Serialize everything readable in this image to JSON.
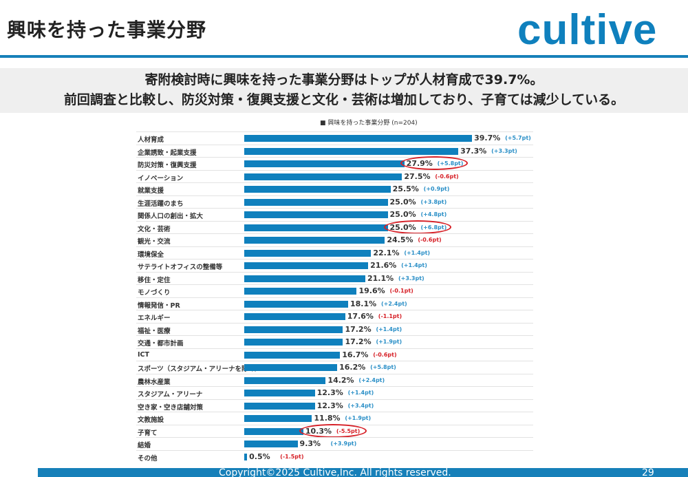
{
  "header": {
    "title": "興味を持った事業分野",
    "logo_text": "cultive",
    "accent_color": "#0f80bd"
  },
  "banner": {
    "line1": "寄附検討時に興味を持った事業分野はトップが人材育成で39.7%。",
    "line2": "前回調査と比較し、防災対策・復興支援と文化・芸術は増加しており、子育ては減少している。"
  },
  "chart_data": {
    "type": "bar",
    "orientation": "horizontal",
    "legend": "■ 興味を持った事業分野 (n=204)",
    "legend_placement": "top",
    "unit": "%",
    "categories": [
      "人材育成",
      "企業誘致・起業支援",
      "防災対策・復興支援",
      "イノベーション",
      "就業支援",
      "生涯活躍のまち",
      "関係人口の創出・拡大",
      "文化・芸術",
      "観光・交流",
      "環境保全",
      "サテライトオフィスの整備等",
      "移住・定住",
      "モノづくり",
      "情報発信・PR",
      "エネルギー",
      "福祉・医療",
      "交通・都市計画",
      "ICT",
      "スポーツ（スタジアム・アリーナを除く）",
      "農林水産業",
      "スタジアム・アリーナ",
      "空き家・空き店舗対策",
      "文教施設",
      "子育て",
      "結婚",
      "その他"
    ],
    "values": [
      39.7,
      37.3,
      27.9,
      27.5,
      25.5,
      25.0,
      25.0,
      25.0,
      24.5,
      22.1,
      21.6,
      21.1,
      19.6,
      18.1,
      17.6,
      17.2,
      17.2,
      16.7,
      16.2,
      14.2,
      12.3,
      12.3,
      11.8,
      10.3,
      9.3,
      0.5
    ],
    "value_labels": [
      "39.7%",
      "37.3%",
      "27.9%",
      "27.5%",
      "25.5%",
      "25.0%",
      "25.0%",
      "25.0%",
      "24.5%",
      "22.1%",
      "21.6%",
      "21.1%",
      "19.6%",
      "18.1%",
      "17.6%",
      "17.2%",
      "17.2%",
      "16.7%",
      "16.2%",
      "14.2%",
      "12.3%",
      "12.3%",
      "11.8%",
      "10.3%",
      "9.3%",
      "0.5%"
    ],
    "diff_labels": [
      "(+5.7pt)",
      "(+3.3pt)",
      "(+5.8pt)",
      "(-0.6pt)",
      "(+0.9pt)",
      "(+3.8pt)",
      "(+4.8pt)",
      "(+6.8pt)",
      "(-0.6pt)",
      "(+1.4pt)",
      "(+1.4pt)",
      "(+3.3pt)",
      "(-0.1pt)",
      "(+2.4pt)",
      "(-1.1pt)",
      "(+1.4pt)",
      "(+1.9pt)",
      "(-0.6pt)",
      "(+5.8pt)",
      "(+2.4pt)",
      "(+1.4pt)",
      "(+3.4pt)",
      "(+1.9pt)",
      "(-5.5pt)",
      "(+3.9pt)",
      "(-1.5pt)"
    ],
    "highlighted": [
      "防災対策・復興支援",
      "文化・芸術",
      "子育て"
    ],
    "bar_color": "#0f80bd",
    "positive_color": "#2a8fc7",
    "negative_color": "#d61f26",
    "highlight_color": "#d61f26"
  },
  "footer": {
    "copyright": "Copyright©2025 Cultive,Inc. All rights reserved.",
    "page": "29"
  }
}
